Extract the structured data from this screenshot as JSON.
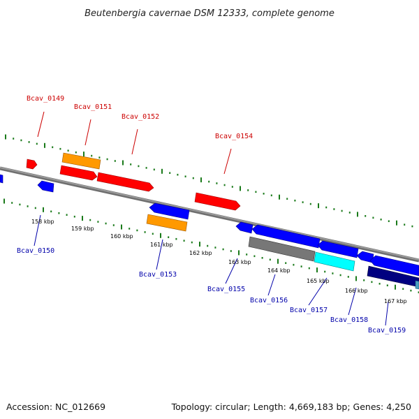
{
  "title": "Beutenbergia cavernae DSM 12333, complete genome",
  "accession": "Accession: NC_012669",
  "summary": "Topology: circular; Length: 4,669,183 bp; Genes: 4,250",
  "colors": {
    "top_label": "#cc0000",
    "bottom_label": "#0000aa",
    "tick": "#1a7a1a",
    "backbone": "#888888"
  },
  "scale_labels": [
    "158 kbp",
    "159 kbp",
    "160 kbp",
    "161 kbp",
    "162 kbp",
    "163 kbp",
    "164 kbp",
    "165 kbp",
    "166 kbp",
    "167 kbp"
  ],
  "gene_labels": {
    "top": [
      "Bcav_0149",
      "Bcav_0151",
      "Bcav_0152",
      "Bcav_0154"
    ],
    "bottom": [
      "Bcav_0150",
      "Bcav_0153",
      "Bcav_0155",
      "Bcav_0156",
      "Bcav_0157",
      "Bcav_0158",
      "Bcav_0159"
    ]
  }
}
